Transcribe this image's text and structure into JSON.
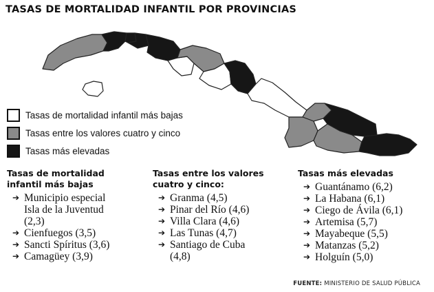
{
  "title": "TASAS DE MORTALIDAD INFANTIL POR PROVINCIAS",
  "colors": {
    "lowest": "#ffffff",
    "middle": "#8a8a8a",
    "highest": "#161616",
    "border": "#222222"
  },
  "legend": [
    {
      "label": "Tasas de mortalidad infantil más bajas",
      "category": "lowest"
    },
    {
      "label": "Tasas entre los valores cuatro y cinco",
      "category": "middle"
    },
    {
      "label": "Tasas más elevadas",
      "category": "highest"
    }
  ],
  "columns": [
    {
      "heading": [
        "Tasas de mortalidad",
        "infantil más bajas"
      ],
      "items": [
        [
          "Municipio especial",
          "Isla de la Juventud",
          "(2,3)"
        ],
        [
          "Cienfuegos (3,5)"
        ],
        [
          "Sancti Spíritus (3,6)"
        ],
        [
          "Camagüey (3,9)"
        ]
      ]
    },
    {
      "heading": [
        "Tasas entre los valores",
        "cuatro y cinco:"
      ],
      "items": [
        [
          "Granma (4,5)"
        ],
        [
          "Pinar del Río (4,6)"
        ],
        [
          "Villa Clara (4,6)"
        ],
        [
          "Las Tunas (4,7)"
        ],
        [
          "Santiago de Cuba",
          "(4,8)"
        ]
      ]
    },
    {
      "heading": [
        "Tasas más elevadas"
      ],
      "items": [
        [
          "Guantánamo (6,2)"
        ],
        [
          "La Habana (6,1)"
        ],
        [
          "Ciego de Ávila (6,1)"
        ],
        [
          "Artemisa (5,7)"
        ],
        [
          "Mayabeque (5,5)"
        ],
        [
          "Matanzas (5,2)"
        ],
        [
          "Holguín (5,0)"
        ]
      ]
    }
  ],
  "provinces": [
    {
      "name": "Pinar del Río",
      "rate": "4,6",
      "category": "middle"
    },
    {
      "name": "Artemisa",
      "rate": "5,7",
      "category": "highest"
    },
    {
      "name": "La Habana",
      "rate": "6,1",
      "category": "highest"
    },
    {
      "name": "Mayabeque",
      "rate": "5,5",
      "category": "highest"
    },
    {
      "name": "Matanzas",
      "rate": "5,2",
      "category": "highest"
    },
    {
      "name": "Cienfuegos",
      "rate": "3,5",
      "category": "lowest"
    },
    {
      "name": "Villa Clara",
      "rate": "4,6",
      "category": "middle"
    },
    {
      "name": "Sancti Spíritus",
      "rate": "3,6",
      "category": "lowest"
    },
    {
      "name": "Ciego de Ávila",
      "rate": "6,1",
      "category": "highest"
    },
    {
      "name": "Camagüey",
      "rate": "3,9",
      "category": "lowest"
    },
    {
      "name": "Las Tunas",
      "rate": "4,7",
      "category": "middle"
    },
    {
      "name": "Granma",
      "rate": "4,5",
      "category": "middle"
    },
    {
      "name": "Holguín",
      "rate": "5,0",
      "category": "highest"
    },
    {
      "name": "Santiago de Cuba",
      "rate": "4,8",
      "category": "middle"
    },
    {
      "name": "Guantánamo",
      "rate": "6,2",
      "category": "highest"
    },
    {
      "name": "Municipio especial Isla de la Juventud",
      "rate": "2,3",
      "category": "lowest"
    }
  ],
  "source": {
    "label": "FUENTE:",
    "text": "MINISTERIO DE SALUD PÚBLICA"
  }
}
